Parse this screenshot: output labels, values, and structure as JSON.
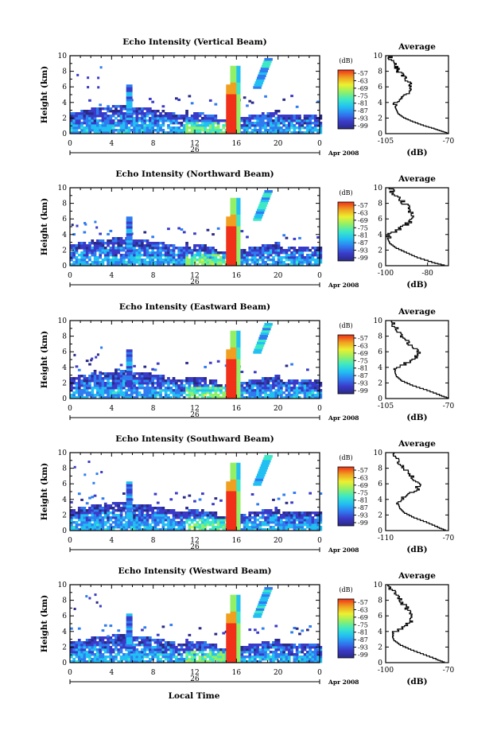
{
  "panels": [
    {
      "title": "Echo Intensity (Vertical Beam)",
      "avg_title": "Average",
      "avg_x_ticks": [
        "-105",
        "-70"
      ],
      "avg_xlim": [
        -105,
        -70
      ],
      "avg_profile": [
        [
          -70,
          0
        ],
        [
          -74,
          0.3
        ],
        [
          -78,
          0.6
        ],
        [
          -84,
          1.0
        ],
        [
          -90,
          1.5
        ],
        [
          -95,
          2.0
        ],
        [
          -98,
          2.5
        ],
        [
          -99,
          3.0
        ],
        [
          -100,
          3.5
        ],
        [
          -99,
          4.0
        ],
        [
          -96,
          4.5
        ],
        [
          -93,
          5.0
        ],
        [
          -92,
          5.5
        ],
        [
          -91,
          6.0
        ],
        [
          -92,
          6.5
        ],
        [
          -94,
          7.0
        ],
        [
          -96,
          7.5
        ],
        [
          -98,
          8.0
        ],
        [
          -99,
          8.5
        ],
        [
          -101,
          9.0
        ],
        [
          -102,
          9.5
        ],
        [
          -103,
          10.0
        ]
      ]
    },
    {
      "title": "Echo Intensity (Northward Beam)",
      "avg_title": "Average",
      "avg_x_ticks": [
        "-100",
        "-80"
      ],
      "avg_xlim": [
        -100,
        -70
      ],
      "avg_profile": [
        [
          -72,
          0
        ],
        [
          -78,
          0.4
        ],
        [
          -85,
          1.0
        ],
        [
          -90,
          1.6
        ],
        [
          -95,
          2.2
        ],
        [
          -98,
          2.8
        ],
        [
          -99,
          3.4
        ],
        [
          -98,
          4.0
        ],
        [
          -94,
          4.6
        ],
        [
          -90,
          5.2
        ],
        [
          -88,
          5.8
        ],
        [
          -87,
          6.4
        ],
        [
          -88,
          7.0
        ],
        [
          -90,
          7.6
        ],
        [
          -92,
          8.2
        ],
        [
          -95,
          8.8
        ],
        [
          -97,
          9.4
        ],
        [
          -98,
          10.0
        ]
      ]
    },
    {
      "title": "Echo Intensity (Eastward Beam)",
      "avg_title": "Average",
      "avg_x_ticks": [
        "-105",
        "-70"
      ],
      "avg_xlim": [
        -105,
        -70
      ],
      "avg_profile": [
        [
          -70,
          0
        ],
        [
          -75,
          0.4
        ],
        [
          -82,
          1.0
        ],
        [
          -90,
          1.6
        ],
        [
          -96,
          2.2
        ],
        [
          -99,
          2.8
        ],
        [
          -100,
          3.4
        ],
        [
          -98,
          4.0
        ],
        [
          -92,
          4.6
        ],
        [
          -88,
          5.2
        ],
        [
          -87,
          5.8
        ],
        [
          -89,
          6.4
        ],
        [
          -92,
          7.0
        ],
        [
          -95,
          7.6
        ],
        [
          -97,
          8.2
        ],
        [
          -99,
          8.8
        ],
        [
          -101,
          9.4
        ],
        [
          -102,
          10.0
        ]
      ]
    },
    {
      "title": "Echo Intensity (Southward Beam)",
      "avg_title": "Average",
      "avg_x_ticks": [
        "-110",
        "-70"
      ],
      "avg_xlim": [
        -110,
        -70
      ],
      "avg_profile": [
        [
          -72,
          0
        ],
        [
          -77,
          0.4
        ],
        [
          -84,
          1.0
        ],
        [
          -92,
          1.6
        ],
        [
          -98,
          2.2
        ],
        [
          -101,
          2.8
        ],
        [
          -102,
          3.4
        ],
        [
          -100,
          4.0
        ],
        [
          -95,
          4.6
        ],
        [
          -90,
          5.2
        ],
        [
          -89,
          5.8
        ],
        [
          -91,
          6.4
        ],
        [
          -94,
          7.0
        ],
        [
          -97,
          7.6
        ],
        [
          -100,
          8.2
        ],
        [
          -102,
          8.8
        ],
        [
          -104,
          9.4
        ],
        [
          -106,
          10.0
        ]
      ]
    },
    {
      "title": "Echo Intensity (Westward Beam)",
      "avg_title": "Average",
      "avg_x_ticks": [
        "-100",
        "-70"
      ],
      "avg_xlim": [
        -100,
        -70
      ],
      "avg_profile": [
        [
          -72,
          0
        ],
        [
          -76,
          0.4
        ],
        [
          -82,
          1.0
        ],
        [
          -88,
          1.6
        ],
        [
          -93,
          2.2
        ],
        [
          -96,
          2.8
        ],
        [
          -97,
          3.4
        ],
        [
          -95,
          4.0
        ],
        [
          -91,
          4.6
        ],
        [
          -88,
          5.2
        ],
        [
          -87,
          5.8
        ],
        [
          -88,
          6.4
        ],
        [
          -90,
          7.0
        ],
        [
          -92,
          7.6
        ],
        [
          -94,
          8.2
        ],
        [
          -96,
          8.8
        ],
        [
          -97,
          9.4
        ],
        [
          -98,
          10.0
        ]
      ]
    }
  ],
  "ylabel": "Height (km)",
  "y_ticks": [
    "0",
    "2",
    "4",
    "6",
    "8",
    "10"
  ],
  "x_ticks": [
    "0",
    "4",
    "8",
    "12",
    "16",
    "20",
    "0"
  ],
  "date_day": "26",
  "date_label": "Apr 2008",
  "colorbar_title": "(dB)",
  "colorbar_ticks": [
    "-57",
    "-63",
    "-69",
    "-75",
    "-81",
    "-87",
    "-93",
    "-99"
  ],
  "avg_xlabel": "(dB)",
  "bottom_xlabel": "Local Time",
  "colors": {
    "colormap": [
      "#2a2a86",
      "#3a3ac8",
      "#2f7cf0",
      "#22c0f2",
      "#3ce8c6",
      "#92f066",
      "#ecf030",
      "#f0a020",
      "#f03018"
    ],
    "line": "#000000"
  },
  "chart_data": [
    {
      "type": "heatmap",
      "title": "Echo Intensity (Vertical Beam)",
      "xlabel": "",
      "ylabel": "Height (km)",
      "xlim": [
        0,
        24
      ],
      "ylim": [
        0,
        10
      ],
      "colorbar": {
        "label": "(dB)",
        "range": [
          -99,
          -57
        ]
      },
      "features": [
        {
          "desc": "boundary layer",
          "x": [
            0,
            24
          ],
          "y": [
            0,
            4
          ],
          "value": -90
        },
        {
          "desc": "intense column",
          "x": [
            15,
            16
          ],
          "y": [
            0,
            8
          ],
          "value": -57
        },
        {
          "desc": "elevated layer",
          "x": [
            17.5,
            19
          ],
          "y": [
            6,
            10
          ],
          "value": -85
        },
        {
          "desc": "plume",
          "x": [
            5.5,
            6
          ],
          "y": [
            2,
            6
          ],
          "value": -80
        }
      ]
    },
    {
      "type": "line",
      "title": "Average",
      "xlabel": "(dB)",
      "ylabel": "Height (km)",
      "xlim": [
        -105,
        -70
      ],
      "ylim": [
        0,
        10
      ],
      "x": [
        -70,
        -74,
        -78,
        -84,
        -90,
        -95,
        -98,
        -99,
        -100,
        -99,
        -96,
        -93,
        -92,
        -91,
        -92,
        -94,
        -96,
        -98,
        -99,
        -101,
        -102,
        -103
      ],
      "y": [
        0,
        0.3,
        0.6,
        1.0,
        1.5,
        2.0,
        2.5,
        3.0,
        3.5,
        4.0,
        4.5,
        5.0,
        5.5,
        6.0,
        6.5,
        7.0,
        7.5,
        8.0,
        8.5,
        9.0,
        9.5,
        10.0
      ]
    }
  ]
}
